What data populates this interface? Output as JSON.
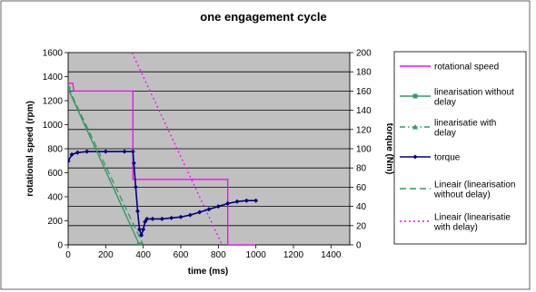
{
  "chart_data": {
    "type": "line",
    "title": "one engagement cycle",
    "xlabel": "time (ms)",
    "ylabel_left": "rotational speed (rpm)",
    "ylabel_right": "torque (Nm)",
    "xlim": [
      0,
      1500
    ],
    "ylim_left": [
      0,
      1600
    ],
    "ylim_right": [
      0,
      200
    ],
    "x_ticks": [
      "0",
      "200",
      "400",
      "600",
      "800",
      "1000",
      "1200",
      "1400"
    ],
    "y_left_ticks": [
      "0",
      "200",
      "400",
      "600",
      "800",
      "1000",
      "1200",
      "1400",
      "1600"
    ],
    "y_right_ticks": [
      "0",
      "20",
      "40",
      "60",
      "80",
      "100",
      "120",
      "140",
      "160",
      "180",
      "200"
    ],
    "grid": true,
    "legend_position": "right",
    "plot_background": "#c0c0c0",
    "series": [
      {
        "name": "rotational speed",
        "axis": "left",
        "color": "#ff00ff",
        "style": "solid",
        "marker": "none",
        "points": [
          [
            0,
            1345
          ],
          [
            25,
            1345
          ],
          [
            30,
            1280
          ],
          [
            345,
            1280
          ],
          [
            345,
            545
          ],
          [
            850,
            545
          ],
          [
            850,
            0
          ],
          [
            1000,
            0
          ]
        ]
      },
      {
        "name": "linearisation without delay",
        "axis": "left",
        "color": "#339966",
        "style": "solid",
        "marker": "square",
        "points": [
          [
            0,
            1300
          ],
          [
            380,
            0
          ]
        ]
      },
      {
        "name": "linearisatie with delay",
        "axis": "left",
        "color": "#339966",
        "style": "dashdot",
        "marker": "triangle",
        "points": [
          [
            0,
            1300
          ],
          [
            380,
            0
          ]
        ]
      },
      {
        "name": "torque",
        "axis": "right",
        "color": "#000080",
        "style": "solid",
        "marker": "diamond",
        "points": [
          [
            0,
            87
          ],
          [
            20,
            94
          ],
          [
            50,
            96
          ],
          [
            100,
            97
          ],
          [
            200,
            97
          ],
          [
            300,
            97
          ],
          [
            345,
            97
          ],
          [
            350,
            85
          ],
          [
            360,
            60
          ],
          [
            370,
            35
          ],
          [
            380,
            16
          ],
          [
            390,
            10
          ],
          [
            400,
            16
          ],
          [
            410,
            24
          ],
          [
            420,
            27
          ],
          [
            450,
            27
          ],
          [
            500,
            27
          ],
          [
            550,
            28
          ],
          [
            600,
            29
          ],
          [
            650,
            31
          ],
          [
            700,
            34
          ],
          [
            750,
            37
          ],
          [
            800,
            40
          ],
          [
            850,
            43
          ],
          [
            900,
            45
          ],
          [
            950,
            46
          ],
          [
            1000,
            46
          ]
        ]
      },
      {
        "name": "Lineair (linearisation without delay)",
        "axis": "left",
        "color": "#339966",
        "style": "dash",
        "marker": "none",
        "points": [
          [
            0,
            1310
          ],
          [
            400,
            0
          ]
        ]
      },
      {
        "name": "Lineair (linearisatie with delay)",
        "axis": "left",
        "color": "#ff00ff",
        "style": "dot",
        "marker": "none",
        "points": [
          [
            340,
            1600
          ],
          [
            820,
            0
          ]
        ]
      }
    ]
  }
}
